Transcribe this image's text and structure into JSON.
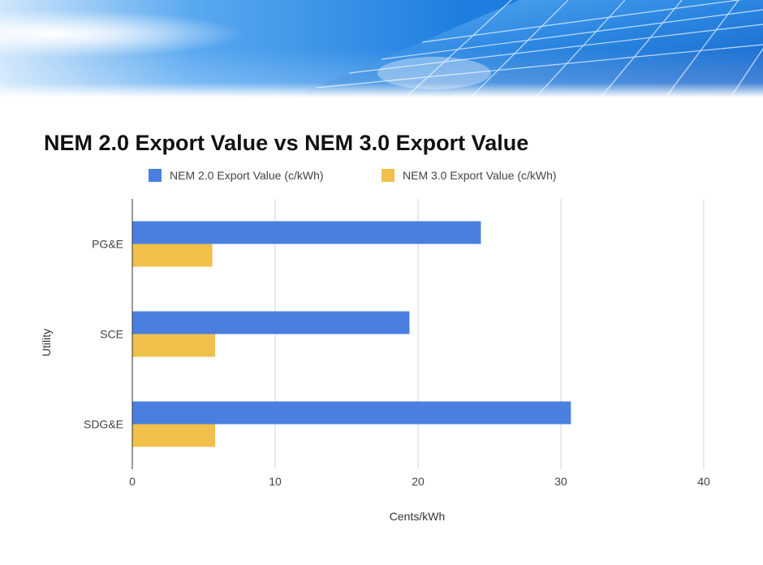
{
  "slide": {
    "banner": {
      "description_icon": "solar-panel-banner",
      "sky_color": "#1e7fe0",
      "panel_color": "#2b7fd8"
    }
  },
  "chart_data": {
    "type": "bar",
    "orientation": "horizontal",
    "title": "NEM 2.0 Export Value vs NEM 3.0 Export Value",
    "xlabel": "Cents/kWh",
    "ylabel": "Utility",
    "categories": [
      "PG&E",
      "SCE",
      "SDG&E"
    ],
    "series": [
      {
        "name": "NEM 2.0 Export Value (c/kWh)",
        "color": "#4a7fe0",
        "values": [
          24.4,
          19.4,
          30.7
        ]
      },
      {
        "name": "NEM 3.0 Export Value (c/kWh)",
        "color": "#f1c04a",
        "values": [
          5.6,
          5.8,
          5.8
        ]
      }
    ],
    "xlim": [
      0,
      40
    ],
    "xticks": [
      0,
      10,
      20,
      30,
      40
    ],
    "grid": true,
    "legend_position": "top"
  }
}
